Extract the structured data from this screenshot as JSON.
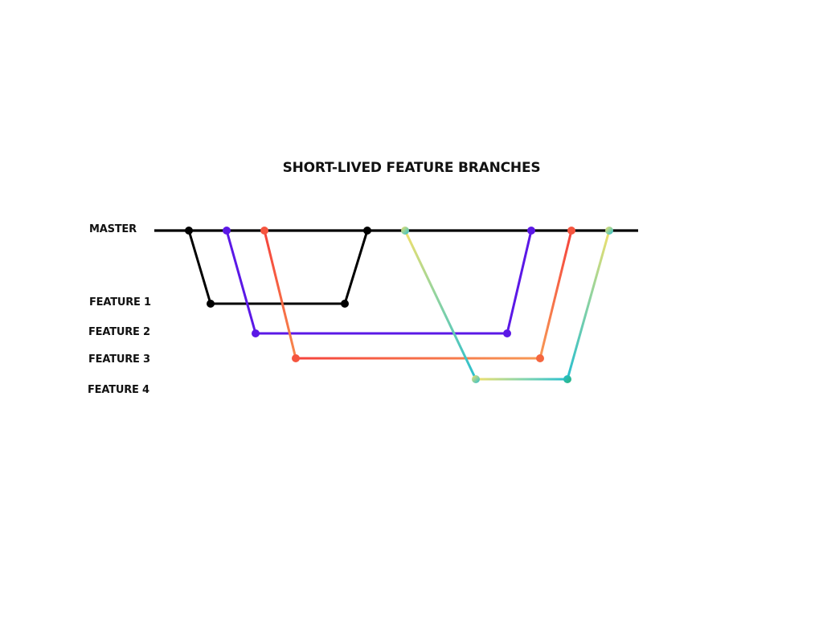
{
  "title": "SHORT-LIVED FEATURE BRANCHES",
  "branches": {
    "master": "MASTER",
    "feature1": "FEATURE 1",
    "feature2": "FEATURE 2",
    "feature3": "FEATURE 3",
    "feature4": "FEATURE 4"
  },
  "colors": {
    "master": "#000000",
    "feature1": "#000000",
    "feature2": "#5b18e6",
    "feature3_start": "#f5423c",
    "feature3_end": "#f79a55",
    "feature4_yellow": "#f2e06b",
    "feature4_teal": "#27bfd0",
    "feature4_green": "#2bb57a"
  }
}
